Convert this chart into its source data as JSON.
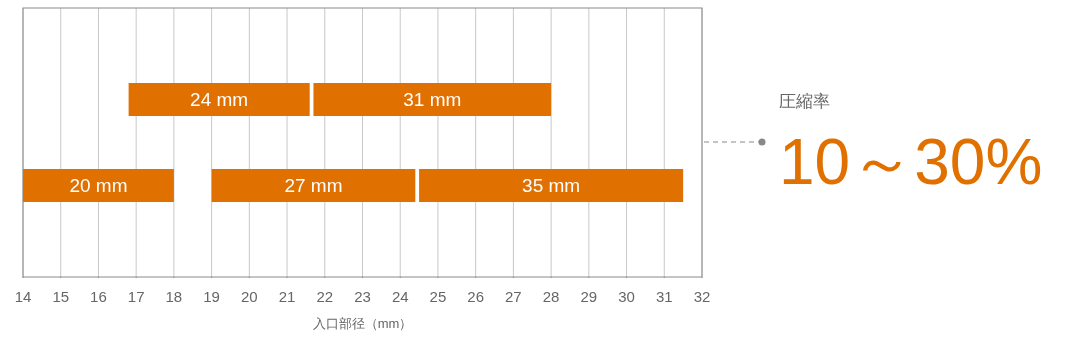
{
  "chart_data": {
    "type": "bar",
    "orientation": "horizontal",
    "categories": [
      null,
      null
    ],
    "xlabel": "入口部径（mm）",
    "xlim": [
      14,
      32
    ],
    "xticks": [
      14,
      15,
      16,
      17,
      18,
      19,
      20,
      21,
      22,
      23,
      24,
      25,
      26,
      27,
      28,
      29,
      30,
      31,
      32
    ],
    "grid": "x",
    "series": [
      {
        "name": "24 mm",
        "color": "#e07000",
        "base": [
          16.8,
          null
        ],
        "values": [
          4.8,
          null
        ]
      },
      {
        "name": "31 mm",
        "color": "#e07000",
        "base": [
          21.7,
          null
        ],
        "values": [
          6.3,
          null
        ]
      },
      {
        "name": "20 mm",
        "color": "#e07000",
        "base": [
          null,
          14
        ],
        "values": [
          null,
          4.0
        ]
      },
      {
        "name": "27 mm",
        "color": "#e07000",
        "base": [
          null,
          19.0
        ],
        "values": [
          null,
          5.4
        ]
      },
      {
        "name": "35 mm",
        "color": "#e07000",
        "base": [
          null,
          24.5
        ],
        "values": [
          null,
          7.0
        ]
      }
    ],
    "annotations": [
      "圧縮率",
      "10～30%"
    ]
  }
}
